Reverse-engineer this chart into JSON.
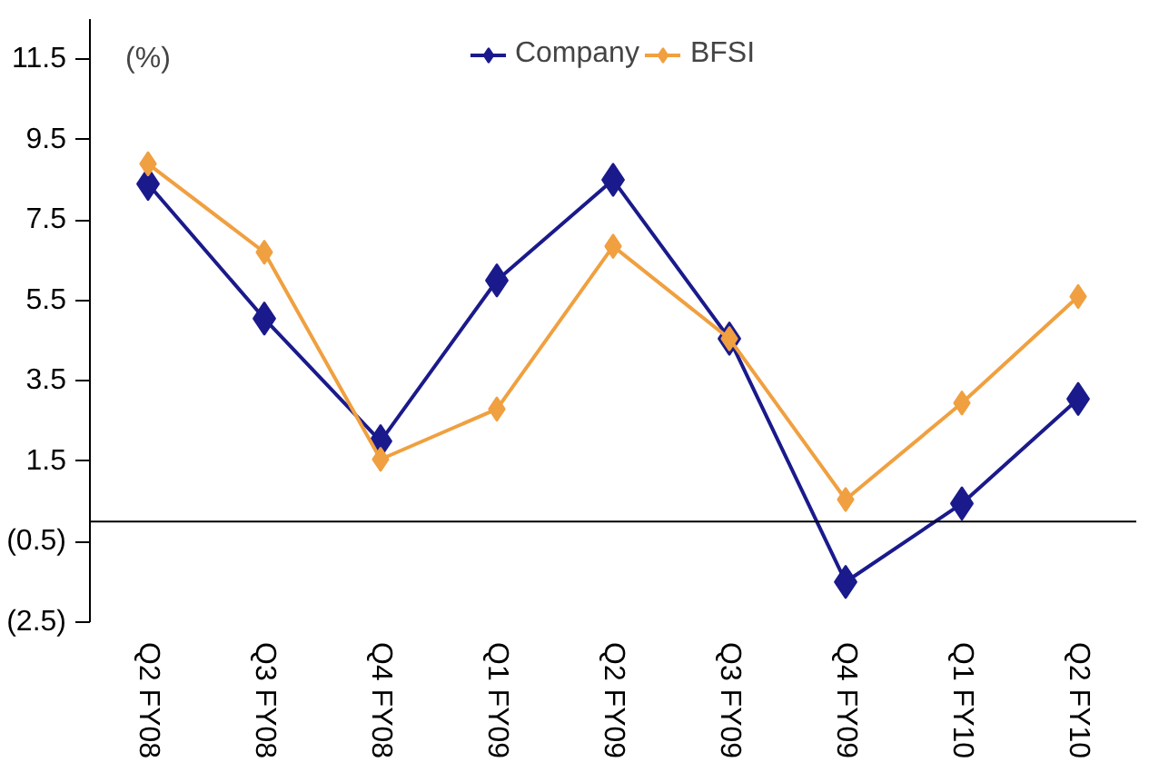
{
  "chart_data": {
    "type": "line",
    "categories": [
      "Q2 FY08",
      "Q3 FY08",
      "Q4 FY08",
      "Q1 FY09",
      "Q2 FY09",
      "Q3 FY09",
      "Q4 FY09",
      "Q1 FY10",
      "Q2 FY10"
    ],
    "series": [
      {
        "name": "Company",
        "color": "#1a1a8c",
        "values": [
          8.4,
          5.05,
          2.0,
          6.0,
          8.5,
          4.55,
          -1.5,
          0.45,
          3.05
        ]
      },
      {
        "name": "BFSI",
        "color": "#f0a040",
        "values": [
          8.9,
          6.7,
          1.55,
          2.8,
          6.85,
          4.55,
          0.55,
          2.95,
          5.6
        ]
      }
    ],
    "ylim": [
      -2.5,
      12.5
    ],
    "yticks": [
      {
        "value": -2.5,
        "label": "(2.5)"
      },
      {
        "value": -0.5,
        "label": "(0.5)"
      },
      1.5,
      3.5,
      5.5,
      7.5,
      9.5,
      11.5
    ],
    "annotations": [
      "(%)"
    ],
    "legend": "top",
    "marker": "diamond",
    "grid": false
  }
}
